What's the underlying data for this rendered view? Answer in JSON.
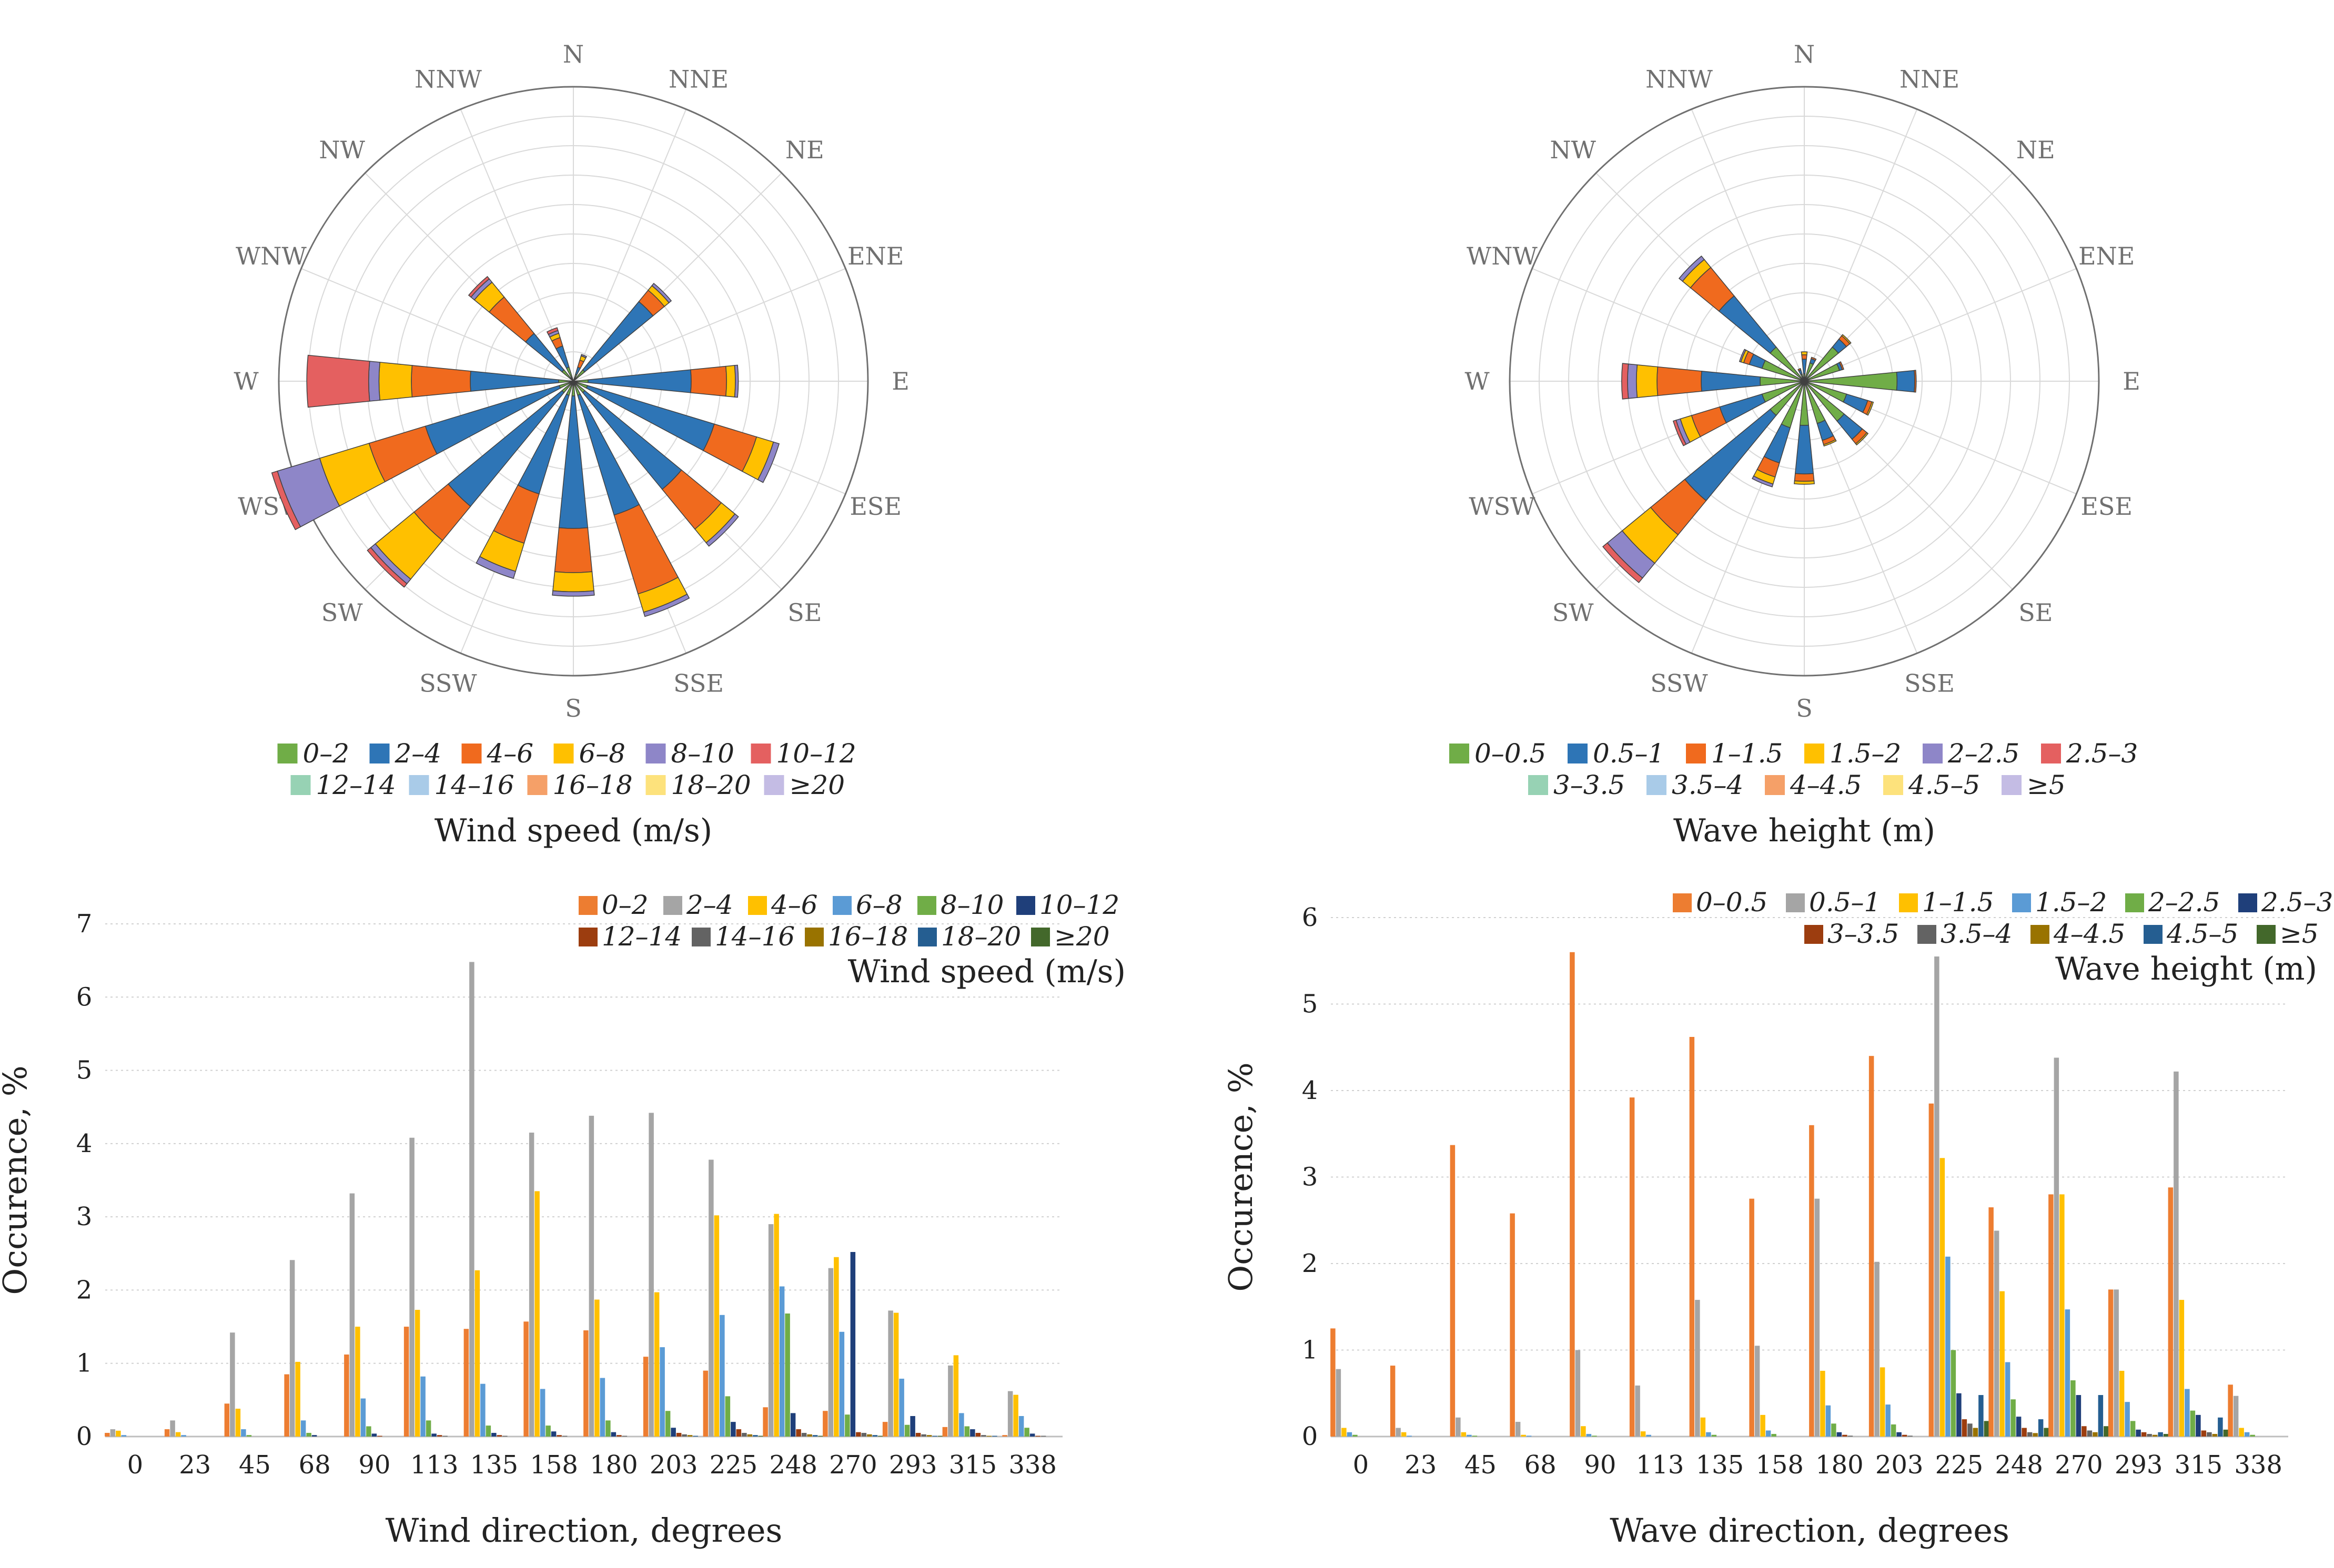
{
  "directions": [
    "N",
    "NNE",
    "NE",
    "ENE",
    "E",
    "ESE",
    "SE",
    "SSE",
    "S",
    "SSW",
    "SW",
    "WSW",
    "W",
    "WNW",
    "NW",
    "NNW"
  ],
  "wind_bins": [
    "0–2",
    "2–4",
    "4–6",
    "6–8",
    "8–10",
    "10–12",
    "12–14",
    "14–16",
    "16–18",
    "18–20",
    "≥20"
  ],
  "wave_bins": [
    "0–0.5",
    "0.5–1",
    "1–1.5",
    "1.5–2",
    "2–2.5",
    "2.5–3",
    "3–3.5",
    "3.5–4",
    "4–4.5",
    "4.5–5",
    "≥5"
  ],
  "rose_colors": [
    "#70ad47",
    "#2e75b6",
    "#f06a1e",
    "#ffc000",
    "#8e86c8",
    "#e46060",
    "#97d2b4",
    "#a9cbe8",
    "#f5a068",
    "#fde27c",
    "#c4bce4"
  ],
  "bar_colors": [
    "#ed7d31",
    "#a5a5a5",
    "#ffc000",
    "#5b9bd5",
    "#70ad47",
    "#1f3f7a",
    "#9c3d0f",
    "#636363",
    "#997300",
    "#255e91",
    "#43682b"
  ],
  "chart_data": [
    {
      "type": "rose",
      "title": "Wind speed (m/s)",
      "legend_title": "Wind speed (m/s)",
      "directions": [
        "N",
        "NNE",
        "NE",
        "ENE",
        "E",
        "ESE",
        "SE",
        "SSE",
        "S",
        "SSW",
        "SW",
        "WSW",
        "W",
        "WNW",
        "NW",
        "NNW"
      ],
      "bins": [
        "0–2",
        "2–4",
        "4–6",
        "6–8",
        "8–10",
        "10–12",
        "12–14",
        "14–16",
        "16–18",
        "18–20",
        "≥20"
      ],
      "max_radius": 20,
      "rings": 10,
      "series": [
        {
          "dir": "N",
          "values": [
            0,
            0,
            0,
            0,
            0,
            0,
            0,
            0,
            0,
            0,
            0
          ]
        },
        {
          "dir": "NNE",
          "values": [
            0.5,
            0.5,
            0.5,
            0.3,
            0.1,
            0,
            0,
            0,
            0,
            0,
            0
          ]
        },
        {
          "dir": "NE",
          "values": [
            1,
            6,
            1,
            0.4,
            0.2,
            0,
            0,
            0,
            0,
            0,
            0
          ]
        },
        {
          "dir": "ENE",
          "values": [
            0,
            0,
            0,
            0,
            0,
            0,
            0,
            0,
            0,
            0,
            0
          ]
        },
        {
          "dir": "E",
          "values": [
            1,
            7,
            2.4,
            0.6,
            0.2,
            0,
            0,
            0,
            0,
            0,
            0
          ]
        },
        {
          "dir": "ESE",
          "values": [
            1,
            9,
            3,
            1.2,
            0.4,
            0,
            0,
            0,
            0,
            0,
            0
          ]
        },
        {
          "dir": "SE",
          "values": [
            1,
            8.5,
            3.5,
            1.2,
            0.3,
            0,
            0,
            0,
            0,
            0,
            0
          ]
        },
        {
          "dir": "SSE",
          "values": [
            1,
            8.5,
            5.6,
            1.3,
            0.3,
            0,
            0,
            0,
            0,
            0,
            0
          ]
        },
        {
          "dir": "S",
          "values": [
            1,
            9,
            3,
            1.3,
            0.3,
            0,
            0,
            0,
            0,
            0,
            0
          ]
        },
        {
          "dir": "SSW",
          "values": [
            1,
            7,
            3.5,
            2,
            0.5,
            0,
            0,
            0,
            0,
            0,
            0
          ]
        },
        {
          "dir": "SW",
          "values": [
            1,
            10,
            3,
            3.4,
            0.4,
            0.3,
            0,
            0,
            0,
            0,
            0
          ]
        },
        {
          "dir": "WSW",
          "values": [
            1,
            9.5,
            4,
            3.5,
            3,
            0.4,
            0,
            0,
            0,
            0,
            0
          ]
        },
        {
          "dir": "W",
          "values": [
            1,
            6,
            4,
            2.2,
            0.7,
            4.2,
            0,
            0,
            0,
            0,
            0
          ]
        },
        {
          "dir": "WNW",
          "values": [
            0,
            0,
            0,
            0,
            0,
            0,
            0,
            0,
            0,
            0,
            0
          ]
        },
        {
          "dir": "NW",
          "values": [
            1,
            3.2,
            3.2,
            1.3,
            0.3,
            0.2,
            0,
            0,
            0,
            0,
            0
          ]
        },
        {
          "dir": "NNW",
          "values": [
            1,
            1.5,
            0.6,
            0.3,
            0.2,
            0.2,
            0,
            0,
            0,
            0,
            0
          ]
        }
      ]
    },
    {
      "type": "rose",
      "title": "Wave height (m)",
      "legend_title": "Wave height (m)",
      "directions": [
        "N",
        "NNE",
        "NE",
        "ENE",
        "E",
        "ESE",
        "SE",
        "SSE",
        "S",
        "SSW",
        "SW",
        "WSW",
        "W",
        "WNW",
        "NW",
        "NNW"
      ],
      "bins": [
        "0–0.5",
        "0.5–1",
        "1–1.5",
        "1.5–2",
        "2–2.5",
        "2.5–3",
        "3–3.5",
        "3.5–4",
        "4–4.5",
        "4.5–5",
        "≥5"
      ],
      "max_radius": 20,
      "rings": 10,
      "series": [
        {
          "dir": "N",
          "values": [
            0.5,
            1,
            0.3,
            0.2,
            0,
            0,
            0,
            0,
            0,
            0,
            0
          ]
        },
        {
          "dir": "NNE",
          "values": [
            1.3,
            0.3,
            0.1,
            0,
            0,
            0,
            0,
            0,
            0,
            0,
            0
          ]
        },
        {
          "dir": "NE",
          "values": [
            3,
            0.7,
            0.3,
            0.1,
            0,
            0,
            0,
            0,
            0,
            0,
            0
          ]
        },
        {
          "dir": "ENE",
          "values": [
            2.5,
            0.2,
            0.1,
            0,
            0,
            0,
            0,
            0,
            0,
            0,
            0
          ]
        },
        {
          "dir": "E",
          "values": [
            6.3,
            1.2,
            0.1,
            0,
            0,
            0,
            0,
            0,
            0,
            0,
            0
          ]
        },
        {
          "dir": "ESE",
          "values": [
            3,
            1.5,
            0.3,
            0.1,
            0,
            0,
            0,
            0,
            0,
            0,
            0
          ]
        },
        {
          "dir": "SE",
          "values": [
            3.5,
            1.6,
            0.4,
            0.1,
            0,
            0,
            0,
            0,
            0,
            0,
            0
          ]
        },
        {
          "dir": "SSE",
          "values": [
            3,
            1.2,
            0.3,
            0.1,
            0,
            0,
            0,
            0,
            0,
            0,
            0
          ]
        },
        {
          "dir": "S",
          "values": [
            3,
            3.3,
            0.5,
            0.2,
            0,
            0,
            0,
            0,
            0,
            0,
            0
          ]
        },
        {
          "dir": "SSW",
          "values": [
            3.3,
            2.5,
            1,
            0.5,
            0.2,
            0,
            0,
            0,
            0,
            0,
            0
          ]
        },
        {
          "dir": "SW",
          "values": [
            3,
            7.5,
            3,
            2.5,
            1.3,
            0.4,
            0,
            0,
            0,
            0,
            0
          ]
        },
        {
          "dir": "WSW",
          "values": [
            3,
            3,
            2,
            0.8,
            0.3,
            0.2,
            0,
            0,
            0,
            0,
            0
          ]
        },
        {
          "dir": "W",
          "values": [
            3,
            4,
            3,
            1.4,
            0.6,
            0.4,
            0,
            0,
            0,
            0,
            0
          ]
        },
        {
          "dir": "WNW",
          "values": [
            3,
            0.9,
            0.4,
            0.2,
            0.1,
            0,
            0,
            0,
            0,
            0,
            0
          ]
        },
        {
          "dir": "NW",
          "values": [
            3,
            4.5,
            2.5,
            0.7,
            0.3,
            0,
            0,
            0,
            0,
            0,
            0
          ]
        },
        {
          "dir": "NNW",
          "values": [
            0.5,
            0.3,
            0.1,
            0,
            0,
            0,
            0,
            0,
            0,
            0,
            0
          ]
        }
      ]
    },
    {
      "type": "bar",
      "xlabel": "Wind direction, degrees",
      "ylabel": "Occurence, %",
      "legend_title": "Wind speed (m/s)",
      "ylim": [
        0,
        7
      ],
      "yticks": [
        0,
        1,
        2,
        3,
        4,
        5,
        6,
        7
      ],
      "categories": [
        "0",
        "23",
        "45",
        "68",
        "90",
        "113",
        "135",
        "158",
        "180",
        "203",
        "225",
        "248",
        "270",
        "293",
        "315",
        "338"
      ],
      "series": [
        {
          "name": "0–2",
          "values": [
            0.05,
            0.1,
            0.45,
            0.85,
            1.12,
            1.5,
            1.47,
            1.57,
            1.45,
            1.09,
            0.9,
            0.4,
            0.35,
            0.2,
            0.13,
            0.02
          ]
        },
        {
          "name": "2–4",
          "values": [
            0.1,
            0.22,
            1.42,
            2.41,
            3.32,
            4.08,
            6.48,
            4.15,
            4.38,
            4.42,
            3.78,
            2.9,
            2.3,
            1.72,
            0.97,
            0.62
          ]
        },
        {
          "name": "4–6",
          "values": [
            0.08,
            0.06,
            0.38,
            1.02,
            1.5,
            1.73,
            2.27,
            3.35,
            1.87,
            1.97,
            3.02,
            3.04,
            2.45,
            1.69,
            1.11,
            0.57
          ]
        },
        {
          "name": "6–8",
          "values": [
            0.02,
            0.02,
            0.1,
            0.22,
            0.52,
            0.82,
            0.72,
            0.65,
            0.8,
            1.22,
            1.66,
            2.05,
            1.43,
            0.79,
            0.32,
            0.28
          ]
        },
        {
          "name": "8–10",
          "values": [
            0,
            0,
            0.02,
            0.05,
            0.14,
            0.22,
            0.15,
            0.15,
            0.22,
            0.35,
            0.55,
            1.68,
            0.3,
            0.16,
            0.14,
            0.12
          ]
        },
        {
          "name": "10–12",
          "values": [
            0,
            0,
            0,
            0.02,
            0.04,
            0.04,
            0.05,
            0.07,
            0.06,
            0.12,
            0.2,
            0.32,
            2.52,
            0.28,
            0.1,
            0.04
          ]
        },
        {
          "name": "12–14",
          "values": [
            0,
            0,
            0,
            0,
            0.01,
            0.02,
            0.02,
            0.02,
            0.02,
            0.05,
            0.1,
            0.1,
            0.06,
            0.05,
            0.05,
            0.01
          ]
        },
        {
          "name": "14–16",
          "values": [
            0,
            0,
            0,
            0,
            0,
            0.01,
            0.01,
            0.01,
            0.01,
            0.03,
            0.05,
            0.05,
            0.05,
            0.03,
            0.02,
            0.01
          ]
        },
        {
          "name": "16–18",
          "values": [
            0,
            0,
            0,
            0,
            0,
            0,
            0,
            0,
            0,
            0.02,
            0.03,
            0.03,
            0.03,
            0.02,
            0.01,
            0
          ]
        },
        {
          "name": "18–20",
          "values": [
            0,
            0,
            0,
            0,
            0,
            0,
            0,
            0,
            0,
            0.01,
            0.02,
            0.02,
            0.02,
            0.01,
            0.01,
            0
          ]
        },
        {
          "name": "≥20",
          "values": [
            0,
            0,
            0,
            0,
            0,
            0,
            0,
            0,
            0,
            0,
            0.01,
            0.01,
            0.01,
            0.01,
            0,
            0
          ]
        }
      ]
    },
    {
      "type": "bar",
      "xlabel": "Wave direction, degrees",
      "ylabel": "Occurence, %",
      "legend_title": "Wave height (m)",
      "ylim": [
        0,
        6
      ],
      "yticks": [
        0,
        1,
        2,
        3,
        4,
        5,
        6
      ],
      "categories": [
        "0",
        "23",
        "45",
        "68",
        "90",
        "113",
        "135",
        "158",
        "180",
        "203",
        "225",
        "248",
        "270",
        "293",
        "315",
        "338"
      ],
      "series": [
        {
          "name": "0–0.5",
          "values": [
            1.25,
            0.82,
            3.37,
            2.58,
            5.6,
            3.92,
            4.62,
            2.75,
            3.6,
            4.4,
            3.85,
            2.65,
            2.8,
            1.7,
            2.88,
            0.6
          ]
        },
        {
          "name": "0.5–1",
          "values": [
            0.78,
            0.1,
            0.22,
            0.17,
            1.0,
            0.59,
            1.58,
            1.05,
            2.75,
            2.02,
            5.55,
            2.38,
            4.38,
            1.7,
            4.22,
            0.47
          ]
        },
        {
          "name": "1–1.5",
          "values": [
            0.1,
            0.05,
            0.05,
            0.02,
            0.12,
            0.06,
            0.22,
            0.25,
            0.76,
            0.8,
            3.22,
            1.68,
            2.8,
            0.76,
            1.58,
            0.1
          ]
        },
        {
          "name": "1.5–2",
          "values": [
            0.05,
            0.01,
            0.02,
            0.01,
            0.03,
            0.02,
            0.05,
            0.07,
            0.36,
            0.37,
            2.08,
            0.86,
            1.47,
            0.4,
            0.55,
            0.05
          ]
        },
        {
          "name": "2–2.5",
          "values": [
            0.02,
            0,
            0.01,
            0,
            0.01,
            0,
            0.02,
            0.03,
            0.15,
            0.14,
            1.0,
            0.43,
            0.65,
            0.18,
            0.3,
            0.02
          ]
        },
        {
          "name": "2.5–3",
          "values": [
            0,
            0,
            0,
            0,
            0,
            0,
            0,
            0,
            0.05,
            0.05,
            0.5,
            0.23,
            0.48,
            0.08,
            0.25,
            0
          ]
        },
        {
          "name": "3–3.5",
          "values": [
            0,
            0,
            0,
            0,
            0,
            0,
            0,
            0,
            0.02,
            0.02,
            0.2,
            0.1,
            0.12,
            0.05,
            0.07,
            0
          ]
        },
        {
          "name": "3.5–4",
          "values": [
            0,
            0,
            0,
            0,
            0,
            0,
            0,
            0,
            0.01,
            0.01,
            0.15,
            0.05,
            0.07,
            0.03,
            0.05,
            0
          ]
        },
        {
          "name": "4–4.5",
          "values": [
            0,
            0,
            0,
            0,
            0,
            0,
            0,
            0,
            0,
            0,
            0.1,
            0.04,
            0.05,
            0.02,
            0.03,
            0
          ]
        },
        {
          "name": "4.5–5",
          "values": [
            0,
            0,
            0,
            0,
            0,
            0,
            0,
            0,
            0,
            0,
            0.48,
            0.2,
            0.48,
            0.05,
            0.22,
            0
          ]
        },
        {
          "name": "≥5",
          "values": [
            0,
            0,
            0,
            0,
            0,
            0,
            0,
            0,
            0,
            0,
            0.18,
            0.1,
            0.12,
            0.03,
            0.08,
            0
          ]
        }
      ]
    }
  ]
}
